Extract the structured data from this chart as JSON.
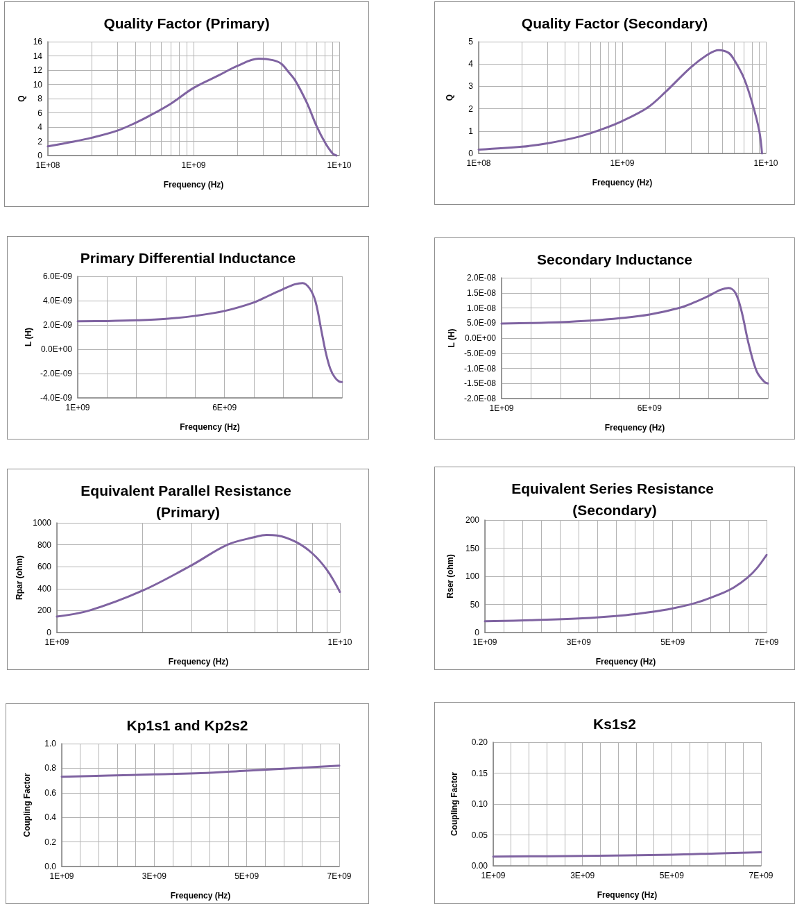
{
  "chart_data": [
    {
      "type": "line",
      "title": "Quality Factor (Primary)",
      "xlabel": "Frequency (Hz)",
      "ylabel": "Q",
      "log": "x",
      "grid": true,
      "marker": "none",
      "color": "#7f63a1",
      "x": [
        100000000.0,
        150000000.0,
        200000000.0,
        300000000.0,
        400000000.0,
        500000000.0,
        700000000.0,
        1000000000.0,
        1500000000.0,
        2000000000.0,
        2800000000.0,
        3500000000.0,
        4000000000.0,
        4500000000.0,
        5000000000.0,
        6000000000.0,
        7000000000.0,
        8000000000.0,
        9000000000.0,
        9570000000.0
      ],
      "values": [
        1.3,
        1.95,
        2.5,
        3.5,
        4.6,
        5.6,
        7.3,
        9.5,
        11.3,
        12.6,
        13.6,
        13.4,
        12.9,
        11.7,
        10.5,
        7.4,
        4.1,
        1.8,
        0.3,
        0
      ],
      "xlim": [
        100000000.0,
        10000000000.0
      ],
      "xticks": [
        {
          "value": 100000000.0,
          "label": "1E+08"
        },
        {
          "value": 200000000.0,
          "label": null
        },
        {
          "value": 300000000.0,
          "label": null
        },
        {
          "value": 400000000.0,
          "label": null
        },
        {
          "value": 500000000.0,
          "label": null
        },
        {
          "value": 600000000.0,
          "label": null
        },
        {
          "value": 700000000.0,
          "label": null
        },
        {
          "value": 800000000.0,
          "label": null
        },
        {
          "value": 900000000.0,
          "label": null
        },
        {
          "value": 1000000000.0,
          "label": "1E+09"
        },
        {
          "value": 2000000000.0,
          "label": null
        },
        {
          "value": 3000000000.0,
          "label": null
        },
        {
          "value": 4000000000.0,
          "label": null
        },
        {
          "value": 5000000000.0,
          "label": null
        },
        {
          "value": 6000000000.0,
          "label": null
        },
        {
          "value": 7000000000.0,
          "label": null
        },
        {
          "value": 8000000000.0,
          "label": null
        },
        {
          "value": 9000000000.0,
          "label": null
        },
        {
          "value": 10000000000.0,
          "label": "1E+10"
        }
      ],
      "ylim": [
        0,
        16
      ],
      "yticks": [
        0,
        2,
        4,
        6,
        8,
        10,
        12,
        14,
        16
      ]
    },
    {
      "type": "line",
      "title": "Quality Factor (Secondary)",
      "xlabel": "Frequency (Hz)",
      "ylabel": "Q",
      "log": "x",
      "grid": true,
      "marker": "none",
      "color": "#7f63a1",
      "x": [
        100000000.0,
        200000000.0,
        300000000.0,
        500000000.0,
        700000000.0,
        1000000000.0,
        1500000000.0,
        2000000000.0,
        3000000000.0,
        4000000000.0,
        4700000000.0,
        5500000000.0,
        6000000000.0,
        7000000000.0,
        8000000000.0,
        9000000000.0,
        9400000000.0
      ],
      "values": [
        0.17,
        0.3,
        0.45,
        0.75,
        1.05,
        1.45,
        2.05,
        2.75,
        3.85,
        4.45,
        4.62,
        4.5,
        4.2,
        3.4,
        2.3,
        1.0,
        0
      ],
      "xlim": [
        100000000.0,
        10000000000.0
      ],
      "xticks": [
        {
          "value": 100000000.0,
          "label": "1E+08"
        },
        {
          "value": 200000000.0,
          "label": null
        },
        {
          "value": 300000000.0,
          "label": null
        },
        {
          "value": 400000000.0,
          "label": null
        },
        {
          "value": 500000000.0,
          "label": null
        },
        {
          "value": 600000000.0,
          "label": null
        },
        {
          "value": 700000000.0,
          "label": null
        },
        {
          "value": 800000000.0,
          "label": null
        },
        {
          "value": 900000000.0,
          "label": null
        },
        {
          "value": 1000000000.0,
          "label": "1E+09"
        },
        {
          "value": 2000000000.0,
          "label": null
        },
        {
          "value": 3000000000.0,
          "label": null
        },
        {
          "value": 4000000000.0,
          "label": null
        },
        {
          "value": 5000000000.0,
          "label": null
        },
        {
          "value": 6000000000.0,
          "label": null
        },
        {
          "value": 7000000000.0,
          "label": null
        },
        {
          "value": 8000000000.0,
          "label": null
        },
        {
          "value": 9000000000.0,
          "label": null
        },
        {
          "value": 10000000000.0,
          "label": "1E+10"
        }
      ],
      "ylim": [
        0,
        5
      ],
      "yticks": [
        0,
        1,
        2,
        3,
        4,
        5
      ]
    },
    {
      "type": "line",
      "title": "Primary Differential Inductance",
      "xlabel": "Frequency (Hz)",
      "ylabel": "L (H)",
      "grid": true,
      "marker": "none",
      "color": "#7f63a1",
      "x": [
        1000000000.0,
        2000000000.0,
        3000000000.0,
        4000000000.0,
        5000000000.0,
        6000000000.0,
        7000000000.0,
        7500000000.0,
        8000000000.0,
        8400000000.0,
        8660000000.0,
        8900000000.0,
        9100000000.0,
        9300000000.0,
        9450000000.0,
        9600000000.0,
        9750000000.0,
        9900000000.0,
        10000000000.0
      ],
      "values": [
        2.3e-09,
        2.32e-09,
        2.38e-09,
        2.5e-09,
        2.75e-09,
        3.15e-09,
        3.85e-09,
        4.4e-09,
        4.95e-09,
        5.35e-09,
        5.45e-09,
        5e-09,
        3.9e-09,
        1.5e-09,
        -3e-10,
        -1.6e-09,
        -2.3e-09,
        -2.65e-09,
        -2.7e-09
      ],
      "xlim": [
        1000000000.0,
        10000000000.0
      ],
      "xticks": [
        {
          "value": 1000000000.0,
          "label": "1E+09"
        },
        {
          "value": 2000000000.0,
          "label": null
        },
        {
          "value": 3000000000.0,
          "label": null
        },
        {
          "value": 4000000000.0,
          "label": null
        },
        {
          "value": 5000000000.0,
          "label": null
        },
        {
          "value": 6000000000.0,
          "label": "6E+09"
        },
        {
          "value": 7000000000.0,
          "label": null
        },
        {
          "value": 8000000000.0,
          "label": null
        },
        {
          "value": 9000000000.0,
          "label": null
        },
        {
          "value": 10000000000.0,
          "label": null
        }
      ],
      "ylim": [
        -4e-09,
        6e-09
      ],
      "yticks": [
        {
          "value": -4e-09,
          "label": "-4.0E-09"
        },
        {
          "value": -2e-09,
          "label": "-2.0E-09"
        },
        {
          "value": 0,
          "label": "0.0E+00"
        },
        {
          "value": 2e-09,
          "label": "2.0E-09"
        },
        {
          "value": 4e-09,
          "label": "4.0E-09"
        },
        {
          "value": 6e-09,
          "label": "6.0E-09"
        }
      ]
    },
    {
      "type": "line",
      "title": "Secondary Inductance",
      "xlabel": "Frequency (Hz)",
      "ylabel": "L (H)",
      "grid": true,
      "marker": "none",
      "color": "#7f63a1",
      "x": [
        1000000000.0,
        2000000000.0,
        3000000000.0,
        4000000000.0,
        5000000000.0,
        6000000000.0,
        7000000000.0,
        7500000000.0,
        8000000000.0,
        8400000000.0,
        8670000000.0,
        8900000000.0,
        9100000000.0,
        9360000000.0,
        9620000000.0,
        9880000000.0,
        10000000000.0
      ],
      "values": [
        4.8e-09,
        5e-09,
        5.3e-09,
        5.8e-09,
        6.6e-09,
        7.8e-09,
        1e-08,
        1.18e-08,
        1.4e-08,
        1.6e-08,
        1.66e-08,
        1.5e-08,
        9.2e-09,
        -2.4e-09,
        -1.1e-08,
        -1.45e-08,
        -1.5e-08
      ],
      "xlim": [
        1000000000.0,
        10000000000.0
      ],
      "xticks": [
        {
          "value": 1000000000.0,
          "label": "1E+09"
        },
        {
          "value": 2000000000.0,
          "label": null
        },
        {
          "value": 3000000000.0,
          "label": null
        },
        {
          "value": 4000000000.0,
          "label": null
        },
        {
          "value": 5000000000.0,
          "label": null
        },
        {
          "value": 6000000000.0,
          "label": "6E+09"
        },
        {
          "value": 7000000000.0,
          "label": null
        },
        {
          "value": 8000000000.0,
          "label": null
        },
        {
          "value": 9000000000.0,
          "label": null
        },
        {
          "value": 10000000000.0,
          "label": null
        }
      ],
      "ylim": [
        -2e-08,
        2e-08
      ],
      "yticks": [
        {
          "value": -2e-08,
          "label": "-2.0E-08"
        },
        {
          "value": -1.5e-08,
          "label": "-1.5E-08"
        },
        {
          "value": -1e-08,
          "label": "-1.0E-08"
        },
        {
          "value": -5e-09,
          "label": "-5.0E-09"
        },
        {
          "value": 0,
          "label": "0.0E+00"
        },
        {
          "value": 5e-09,
          "label": "5.0E-09"
        },
        {
          "value": 1e-08,
          "label": "1.0E-08"
        },
        {
          "value": 1.5e-08,
          "label": "1.5E-08"
        },
        {
          "value": 2e-08,
          "label": "2.0E-08"
        }
      ]
    },
    {
      "type": "line",
      "title": "Equivalent Parallel Resistance (Primary)",
      "xlabel": "Frequency (Hz)",
      "ylabel": "Rpar (ohm)",
      "log": "x",
      "grid": true,
      "marker": "none",
      "color": "#7f63a1",
      "x": [
        1000000000.0,
        1300000000.0,
        2000000000.0,
        3000000000.0,
        4000000000.0,
        5000000000.0,
        5500000000.0,
        6000000000.0,
        7000000000.0,
        8000000000.0,
        9000000000.0,
        10000000000.0
      ],
      "values": [
        145,
        200,
        380,
        615,
        800,
        870,
        890,
        885,
        825,
        720,
        570,
        370
      ],
      "xlim": [
        1000000000.0,
        10000000000.0
      ],
      "xticks": [
        {
          "value": 1000000000.0,
          "label": "1E+09"
        },
        {
          "value": 2000000000.0,
          "label": null
        },
        {
          "value": 3000000000.0,
          "label": null
        },
        {
          "value": 4000000000.0,
          "label": null
        },
        {
          "value": 5000000000.0,
          "label": null
        },
        {
          "value": 6000000000.0,
          "label": null
        },
        {
          "value": 7000000000.0,
          "label": null
        },
        {
          "value": 8000000000.0,
          "label": null
        },
        {
          "value": 9000000000.0,
          "label": null
        },
        {
          "value": 10000000000.0,
          "label": "1E+10"
        }
      ],
      "ylim": [
        0,
        1000
      ],
      "yticks": [
        0,
        200,
        400,
        600,
        800,
        1000
      ]
    },
    {
      "type": "line",
      "title": "Equivalent Series Resistance (Secondary)",
      "xlabel": "Frequency (Hz)",
      "ylabel": "Rser (ohm)",
      "grid": true,
      "marker": "none",
      "color": "#7f63a1",
      "x": [
        1000000000.0,
        2000000000.0,
        3000000000.0,
        4000000000.0,
        4500000000.0,
        5000000000.0,
        5500000000.0,
        6000000000.0,
        6300000000.0,
        6600000000.0,
        6800000000.0,
        7000000000.0
      ],
      "values": [
        20,
        22,
        25,
        31,
        36,
        43,
        53,
        68,
        80,
        98,
        115,
        138
      ],
      "xlim": [
        1000000000.0,
        7000000000.0
      ],
      "xticks": [
        {
          "value": 1000000000.0,
          "label": "1E+09"
        },
        {
          "value": 1400000000.0,
          "label": null
        },
        {
          "value": 1800000000.0,
          "label": null
        },
        {
          "value": 2200000000.0,
          "label": null
        },
        {
          "value": 2600000000.0,
          "label": null
        },
        {
          "value": 3000000000.0,
          "label": "3E+09"
        },
        {
          "value": 3400000000.0,
          "label": null
        },
        {
          "value": 3800000000.0,
          "label": null
        },
        {
          "value": 4200000000.0,
          "label": null
        },
        {
          "value": 4600000000.0,
          "label": null
        },
        {
          "value": 5000000000.0,
          "label": "5E+09"
        },
        {
          "value": 5400000000.0,
          "label": null
        },
        {
          "value": 5800000000.0,
          "label": null
        },
        {
          "value": 6200000000.0,
          "label": null
        },
        {
          "value": 6600000000.0,
          "label": null
        },
        {
          "value": 7000000000.0,
          "label": "7E+09"
        }
      ],
      "ylim": [
        0,
        200
      ],
      "yticks": [
        0,
        50,
        100,
        150,
        200
      ]
    },
    {
      "type": "line",
      "title": "Kp1s1 and Kp2s2",
      "xlabel": "Frequency (Hz)",
      "ylabel": "Coupling Factor",
      "grid": true,
      "marker": "none",
      "color": "#7f63a1",
      "x": [
        1000000000.0,
        2000000000.0,
        3000000000.0,
        4000000000.0,
        5000000000.0,
        6000000000.0,
        7000000000.0
      ],
      "values": [
        0.73,
        0.74,
        0.75,
        0.76,
        0.78,
        0.8,
        0.82
      ],
      "xlim": [
        1000000000.0,
        7000000000.0
      ],
      "xticks": [
        {
          "value": 1000000000.0,
          "label": "1E+09"
        },
        {
          "value": 1400000000.0,
          "label": null
        },
        {
          "value": 1800000000.0,
          "label": null
        },
        {
          "value": 2200000000.0,
          "label": null
        },
        {
          "value": 2600000000.0,
          "label": null
        },
        {
          "value": 3000000000.0,
          "label": "3E+09"
        },
        {
          "value": 3400000000.0,
          "label": null
        },
        {
          "value": 3800000000.0,
          "label": null
        },
        {
          "value": 4200000000.0,
          "label": null
        },
        {
          "value": 4600000000.0,
          "label": null
        },
        {
          "value": 5000000000.0,
          "label": "5E+09"
        },
        {
          "value": 5400000000.0,
          "label": null
        },
        {
          "value": 5800000000.0,
          "label": null
        },
        {
          "value": 6200000000.0,
          "label": null
        },
        {
          "value": 6600000000.0,
          "label": null
        },
        {
          "value": 7000000000.0,
          "label": "7E+09"
        }
      ],
      "ylim": [
        0,
        1
      ],
      "yticks": [
        {
          "value": 0,
          "label": "0.0"
        },
        {
          "value": 0.2,
          "label": "0.2"
        },
        {
          "value": 0.4,
          "label": "0.4"
        },
        {
          "value": 0.6,
          "label": "0.6"
        },
        {
          "value": 0.8,
          "label": "0.8"
        },
        {
          "value": 1,
          "label": "1.0"
        }
      ]
    },
    {
      "type": "line",
      "title": "Ks1s2",
      "xlabel": "Frequency (Hz)",
      "ylabel": "Coupling Factor",
      "grid": true,
      "marker": "none",
      "color": "#7f63a1",
      "x": [
        1000000000.0,
        3000000000.0,
        5000000000.0,
        6000000000.0,
        7000000000.0
      ],
      "values": [
        0.015,
        0.016,
        0.018,
        0.02,
        0.022
      ],
      "xlim": [
        1000000000.0,
        7000000000.0
      ],
      "xticks": [
        {
          "value": 1000000000.0,
          "label": "1E+09"
        },
        {
          "value": 1400000000.0,
          "label": null
        },
        {
          "value": 1800000000.0,
          "label": null
        },
        {
          "value": 2200000000.0,
          "label": null
        },
        {
          "value": 2600000000.0,
          "label": null
        },
        {
          "value": 3000000000.0,
          "label": "3E+09"
        },
        {
          "value": 3400000000.0,
          "label": null
        },
        {
          "value": 3800000000.0,
          "label": null
        },
        {
          "value": 4200000000.0,
          "label": null
        },
        {
          "value": 4600000000.0,
          "label": null
        },
        {
          "value": 5000000000.0,
          "label": "5E+09"
        },
        {
          "value": 5400000000.0,
          "label": null
        },
        {
          "value": 5800000000.0,
          "label": null
        },
        {
          "value": 6200000000.0,
          "label": null
        },
        {
          "value": 6600000000.0,
          "label": null
        },
        {
          "value": 7000000000.0,
          "label": "7E+09"
        }
      ],
      "ylim": [
        0,
        0.2
      ],
      "yticks": [
        {
          "value": 0,
          "label": "0.00"
        },
        {
          "value": 0.05,
          "label": "0.05"
        },
        {
          "value": 0.1,
          "label": "0.10"
        },
        {
          "value": 0.15,
          "label": "0.15"
        },
        {
          "value": 0.2,
          "label": "0.20"
        }
      ]
    }
  ]
}
